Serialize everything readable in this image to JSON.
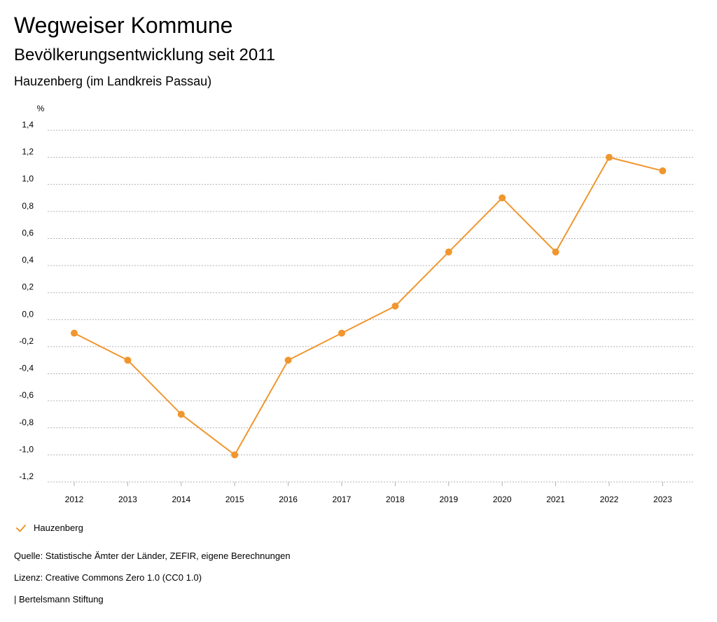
{
  "header": {
    "title": "Wegweiser Kommune",
    "subtitle": "Bevölkerungsentwicklung seit 2011",
    "region": "Hauzenberg (im Landkreis Passau)"
  },
  "colors": {
    "series": "#f0962e",
    "grid": "#b0b0b0",
    "text": "#000000"
  },
  "chart_data": {
    "type": "line",
    "title": "Bevölkerungsentwicklung seit 2011",
    "xlabel": "",
    "ylabel": "%",
    "ylim": [
      -1.2,
      1.4
    ],
    "yticks": [
      1.4,
      1.2,
      1.0,
      0.8,
      0.6,
      0.4,
      0.2,
      0.0,
      -0.2,
      -0.4,
      -0.6,
      -0.8,
      -1.0,
      -1.2
    ],
    "ytick_labels": [
      "1,4",
      "1,2",
      "1,0",
      "0,8",
      "0,6",
      "0,4",
      "0,2",
      "0,0",
      "-0,2",
      "-0,4",
      "-0,6",
      "-0,8",
      "-1,0",
      "-1,2"
    ],
    "categories": [
      "2012",
      "2013",
      "2014",
      "2015",
      "2016",
      "2017",
      "2018",
      "2019",
      "2020",
      "2021",
      "2022",
      "2023"
    ],
    "grid": true,
    "legend_position": "bottom-left",
    "series": [
      {
        "name": "Hauzenberg",
        "values": [
          -0.1,
          -0.3,
          -0.7,
          -1.0,
          -0.3,
          -0.1,
          0.1,
          0.5,
          0.9,
          0.5,
          1.2,
          1.1
        ]
      }
    ]
  },
  "legend": {
    "label": "Hauzenberg",
    "icon": "checkmark-icon"
  },
  "footer": {
    "source": "Quelle: Statistische Ämter der Länder, ZEFIR, eigene Berechnungen",
    "license": "Lizenz: Creative Commons Zero 1.0 (CC0 1.0)",
    "publisher": "| Bertelsmann Stiftung"
  }
}
